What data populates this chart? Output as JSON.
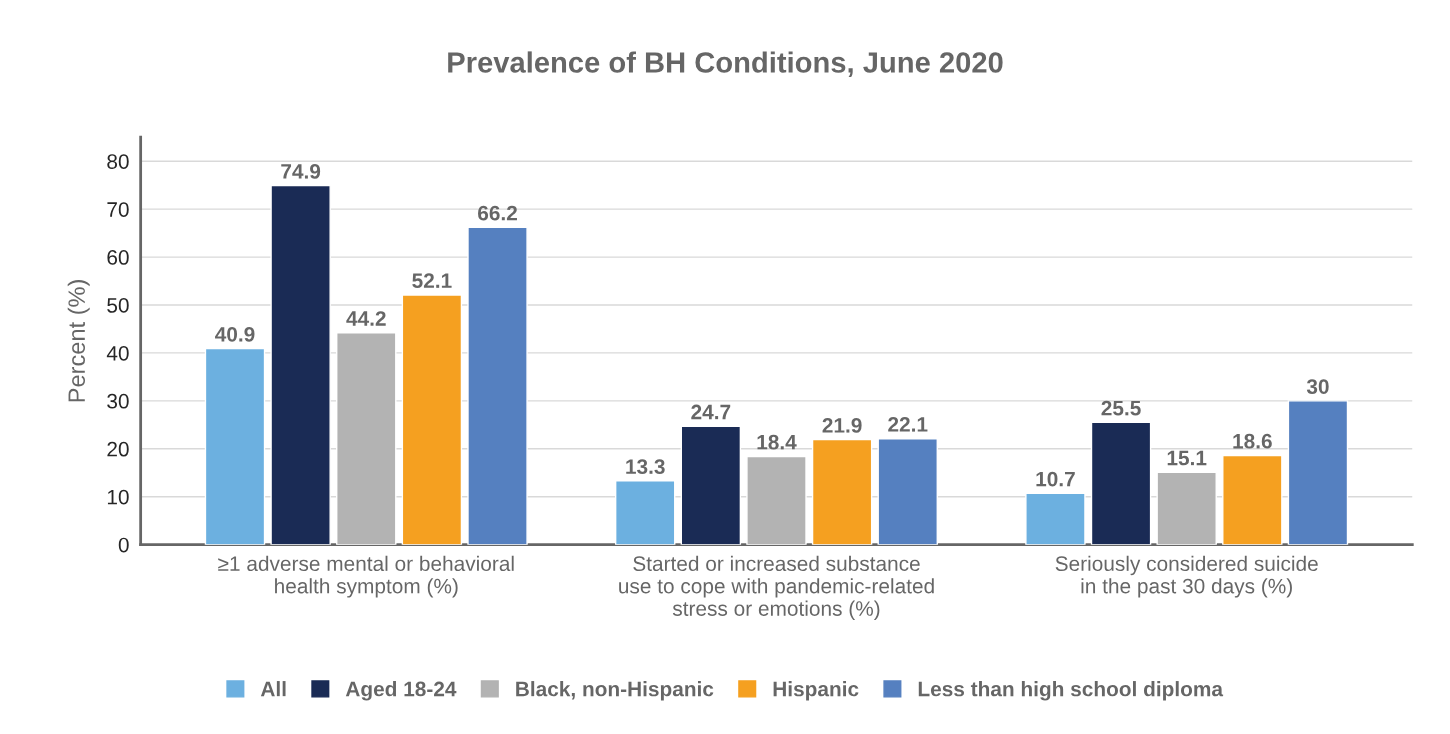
{
  "chart_data": {
    "type": "bar",
    "title": "Prevalence of BH Conditions, June 2020",
    "ylabel": "Percent (%)",
    "categories": [
      "≥1 adverse mental or behavioral\nhealth symptom (%)",
      "Started or increased substance\nuse to cope with pandemic-related\nstress or emotions (%)",
      "Seriously considered suicide\nin the past 30 days (%)"
    ],
    "series": [
      {
        "name": "All",
        "color": "#6cb0e0",
        "values": [
          40.9,
          13.3,
          10.7
        ]
      },
      {
        "name": "Aged 18-24",
        "color": "#1a2b55",
        "values": [
          74.9,
          24.7,
          25.5
        ]
      },
      {
        "name": "Black, non-Hispanic",
        "color": "#b3b3b3",
        "values": [
          44.2,
          18.4,
          15.1
        ]
      },
      {
        "name": "Hispanic",
        "color": "#f5a020",
        "values": [
          52.1,
          21.9,
          18.6
        ]
      },
      {
        "name": "Less than high school diploma",
        "color": "#5580c0",
        "values": [
          66.2,
          22.1,
          30
        ]
      }
    ],
    "ylim": [
      0,
      85
    ],
    "yticks": [
      0,
      10,
      20,
      30,
      40,
      50,
      60,
      70,
      80
    ],
    "grid": "y",
    "legend": "bottom",
    "data_labels": true
  }
}
